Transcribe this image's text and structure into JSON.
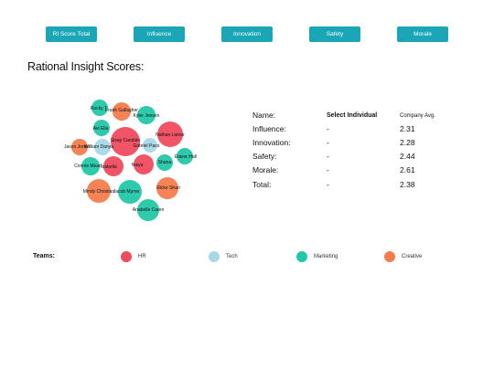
{
  "tabs": [
    {
      "label": "RI Score Total"
    },
    {
      "label": "Influence"
    },
    {
      "label": "Innovation"
    },
    {
      "label": "Safety"
    },
    {
      "label": "Morale"
    }
  ],
  "page_title": "Rational Insight Scores:",
  "table": {
    "header": {
      "name": "Name:",
      "value": "Select Individual",
      "avg": "Company Avg."
    },
    "rows": [
      {
        "label": "Influence:",
        "value": "-",
        "avg": "2.31"
      },
      {
        "label": "Innovation:",
        "value": "-",
        "avg": "2.28"
      },
      {
        "label": "Safety:",
        "value": "-",
        "avg": "2.44"
      },
      {
        "label": "Morale:",
        "value": "-",
        "avg": "2.61"
      },
      {
        "label": "Total:",
        "value": "-",
        "avg": "2.38"
      }
    ]
  },
  "legend": {
    "title": "Teams:",
    "items": [
      {
        "label": "HR",
        "color": "#f04a5f"
      },
      {
        "label": "Tech",
        "color": "#a8d8e8"
      },
      {
        "label": "Marketing",
        "color": "#22c7a7"
      },
      {
        "label": "Creative",
        "color": "#f47c4c"
      }
    ]
  },
  "team_colors": {
    "HR": "#f04a5f",
    "Tech": "#a8d8e8",
    "Marketing": "#22c7a7",
    "Creative": "#f47c4c"
  },
  "bubbles": [
    {
      "name": "Rocky T",
      "team": "Marketing"
    },
    {
      "name": "Frank Gallagher",
      "team": "Creative"
    },
    {
      "name": "Kyler Jensen",
      "team": "Marketing"
    },
    {
      "name": "Avi Ella",
      "team": "Marketing"
    },
    {
      "name": "Nathan Lamar",
      "team": "HR"
    },
    {
      "name": "Sisay Candido",
      "team": "HR"
    },
    {
      "name": "Gabriel Paco",
      "team": "Tech"
    },
    {
      "name": "Jason Jones",
      "team": "Creative"
    },
    {
      "name": "William Danya",
      "team": "Tech"
    },
    {
      "name": "Elaine Hall",
      "team": "Marketing"
    },
    {
      "name": "Shana",
      "team": "Marketing"
    },
    {
      "name": "Connie Mead",
      "team": "Marketing"
    },
    {
      "name": "Isabella",
      "team": "HR"
    },
    {
      "name": "Naiya",
      "team": "HR"
    },
    {
      "name": "Ricke Shari",
      "team": "Creative"
    },
    {
      "name": "Mindy Christian",
      "team": "Creative"
    },
    {
      "name": "Jacob Myron",
      "team": "Marketing"
    },
    {
      "name": "Anabelle Caren",
      "team": "Marketing"
    }
  ]
}
